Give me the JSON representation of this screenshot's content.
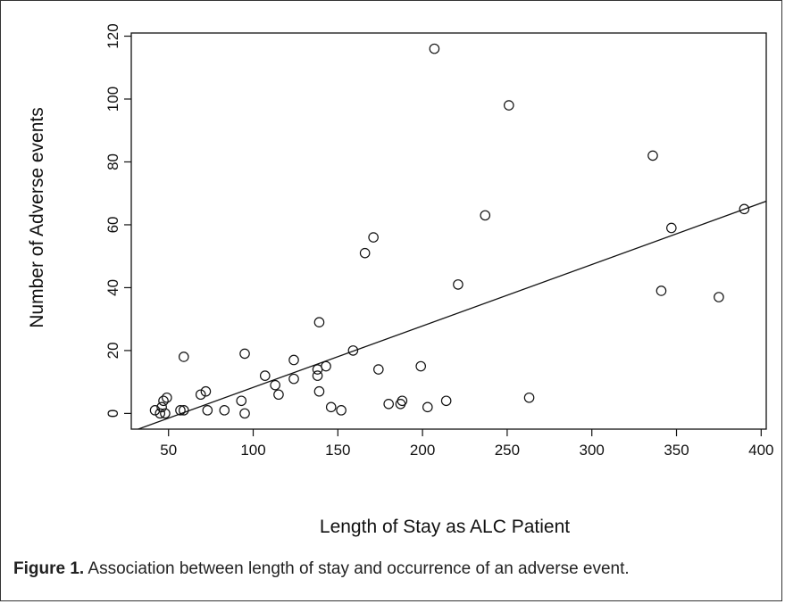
{
  "caption": {
    "label": "Figure 1.",
    "text": " Association between length of stay and occurrence of an adverse event."
  },
  "chart_data": {
    "type": "scatter",
    "title": "",
    "xlabel": "Length of Stay as ALC Patient",
    "ylabel": "Number of Adverse events",
    "xlim": [
      28,
      403
    ],
    "ylim": [
      -5,
      121
    ],
    "xticks": [
      50,
      100,
      150,
      200,
      250,
      300,
      350,
      400
    ],
    "yticks": [
      0,
      20,
      40,
      60,
      80,
      100,
      120
    ],
    "grid": false,
    "marker": "open-circle",
    "fit_line": {
      "type": "linear",
      "points": [
        [
          28,
          -5.8
        ],
        [
          403,
          67.5
        ]
      ]
    },
    "points": [
      [
        42,
        1
      ],
      [
        45,
        0
      ],
      [
        46,
        2
      ],
      [
        47,
        4
      ],
      [
        48,
        0
      ],
      [
        49,
        5
      ],
      [
        57,
        1
      ],
      [
        59,
        1
      ],
      [
        59,
        18
      ],
      [
        69,
        6
      ],
      [
        72,
        7
      ],
      [
        73,
        1
      ],
      [
        83,
        1
      ],
      [
        93,
        4
      ],
      [
        95,
        19
      ],
      [
        95,
        0
      ],
      [
        107,
        12
      ],
      [
        113,
        9
      ],
      [
        115,
        6
      ],
      [
        124,
        11
      ],
      [
        124,
        17
      ],
      [
        138,
        14
      ],
      [
        138,
        12
      ],
      [
        139,
        29
      ],
      [
        139,
        7
      ],
      [
        143,
        15
      ],
      [
        146,
        2
      ],
      [
        152,
        1
      ],
      [
        159,
        20
      ],
      [
        166,
        51
      ],
      [
        171,
        56
      ],
      [
        174,
        14
      ],
      [
        180,
        3
      ],
      [
        187,
        3
      ],
      [
        188,
        4
      ],
      [
        199,
        15
      ],
      [
        203,
        2
      ],
      [
        207,
        116
      ],
      [
        214,
        4
      ],
      [
        221,
        41
      ],
      [
        237,
        63
      ],
      [
        251,
        98
      ],
      [
        263,
        5
      ],
      [
        336,
        82
      ],
      [
        341,
        39
      ],
      [
        347,
        59
      ],
      [
        375,
        37
      ],
      [
        390,
        65
      ]
    ],
    "colors": {
      "marker": "#111111",
      "line": "#111111",
      "axes": "#111111"
    }
  }
}
